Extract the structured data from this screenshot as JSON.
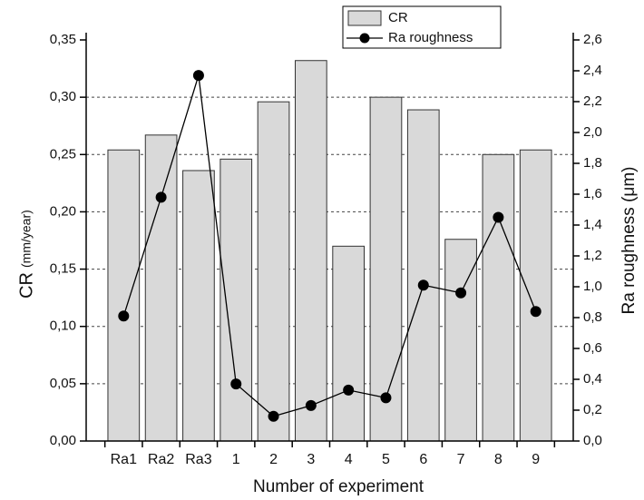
{
  "chart_data": {
    "type": "bar-line",
    "xlabel": "Number of experiment",
    "ylabel": "CR",
    "ylabel_unit": "(mm/year)",
    "y2label": "Ra roughness (μm)",
    "categories": [
      "Ra1",
      "Ra2",
      "Ra3",
      "1",
      "2",
      "3",
      "4",
      "5",
      "6",
      "7",
      "8",
      "9"
    ],
    "series": [
      {
        "name": "CR",
        "type": "bar",
        "color": "#d9d9d9",
        "values": [
          0.254,
          0.267,
          0.236,
          0.246,
          0.296,
          0.332,
          0.17,
          0.3,
          0.289,
          0.176,
          0.25,
          0.254
        ]
      },
      {
        "name": "Ra roughness",
        "type": "line",
        "axis": "y2",
        "color": "#000000",
        "values": [
          0.81,
          1.58,
          2.37,
          0.37,
          0.16,
          0.23,
          0.33,
          0.28,
          1.01,
          0.96,
          1.45,
          0.84
        ]
      }
    ],
    "ylim": [
      0,
      0.35
    ],
    "yticks": [
      {
        "value": 0,
        "label": "0,00"
      },
      {
        "value": 0.05,
        "label": "0,05"
      },
      {
        "value": 0.1,
        "label": "0,10"
      },
      {
        "value": 0.15,
        "label": "0,15"
      },
      {
        "value": 0.2,
        "label": "0,20"
      },
      {
        "value": 0.25,
        "label": "0,25"
      },
      {
        "value": 0.3,
        "label": "0,30"
      },
      {
        "value": 0.35,
        "label": "0,35"
      }
    ],
    "y2lim": [
      0,
      2.6
    ],
    "y2ticks": [
      {
        "value": 0,
        "label": "0,0"
      },
      {
        "value": 0.2,
        "label": "0,2"
      },
      {
        "value": 0.4,
        "label": "0,4"
      },
      {
        "value": 0.6,
        "label": "0,6"
      },
      {
        "value": 0.8,
        "label": "0,8"
      },
      {
        "value": 1.0,
        "label": "1,0"
      },
      {
        "value": 1.2,
        "label": "1,2"
      },
      {
        "value": 1.4,
        "label": "1,4"
      },
      {
        "value": 1.6,
        "label": "1,6"
      },
      {
        "value": 1.8,
        "label": "1,8"
      },
      {
        "value": 2.0,
        "label": "2,0"
      },
      {
        "value": 2.2,
        "label": "2,2"
      },
      {
        "value": 2.4,
        "label": "2,4"
      },
      {
        "value": 2.6,
        "label": "2,6"
      }
    ],
    "grid": true,
    "legend": "top"
  }
}
